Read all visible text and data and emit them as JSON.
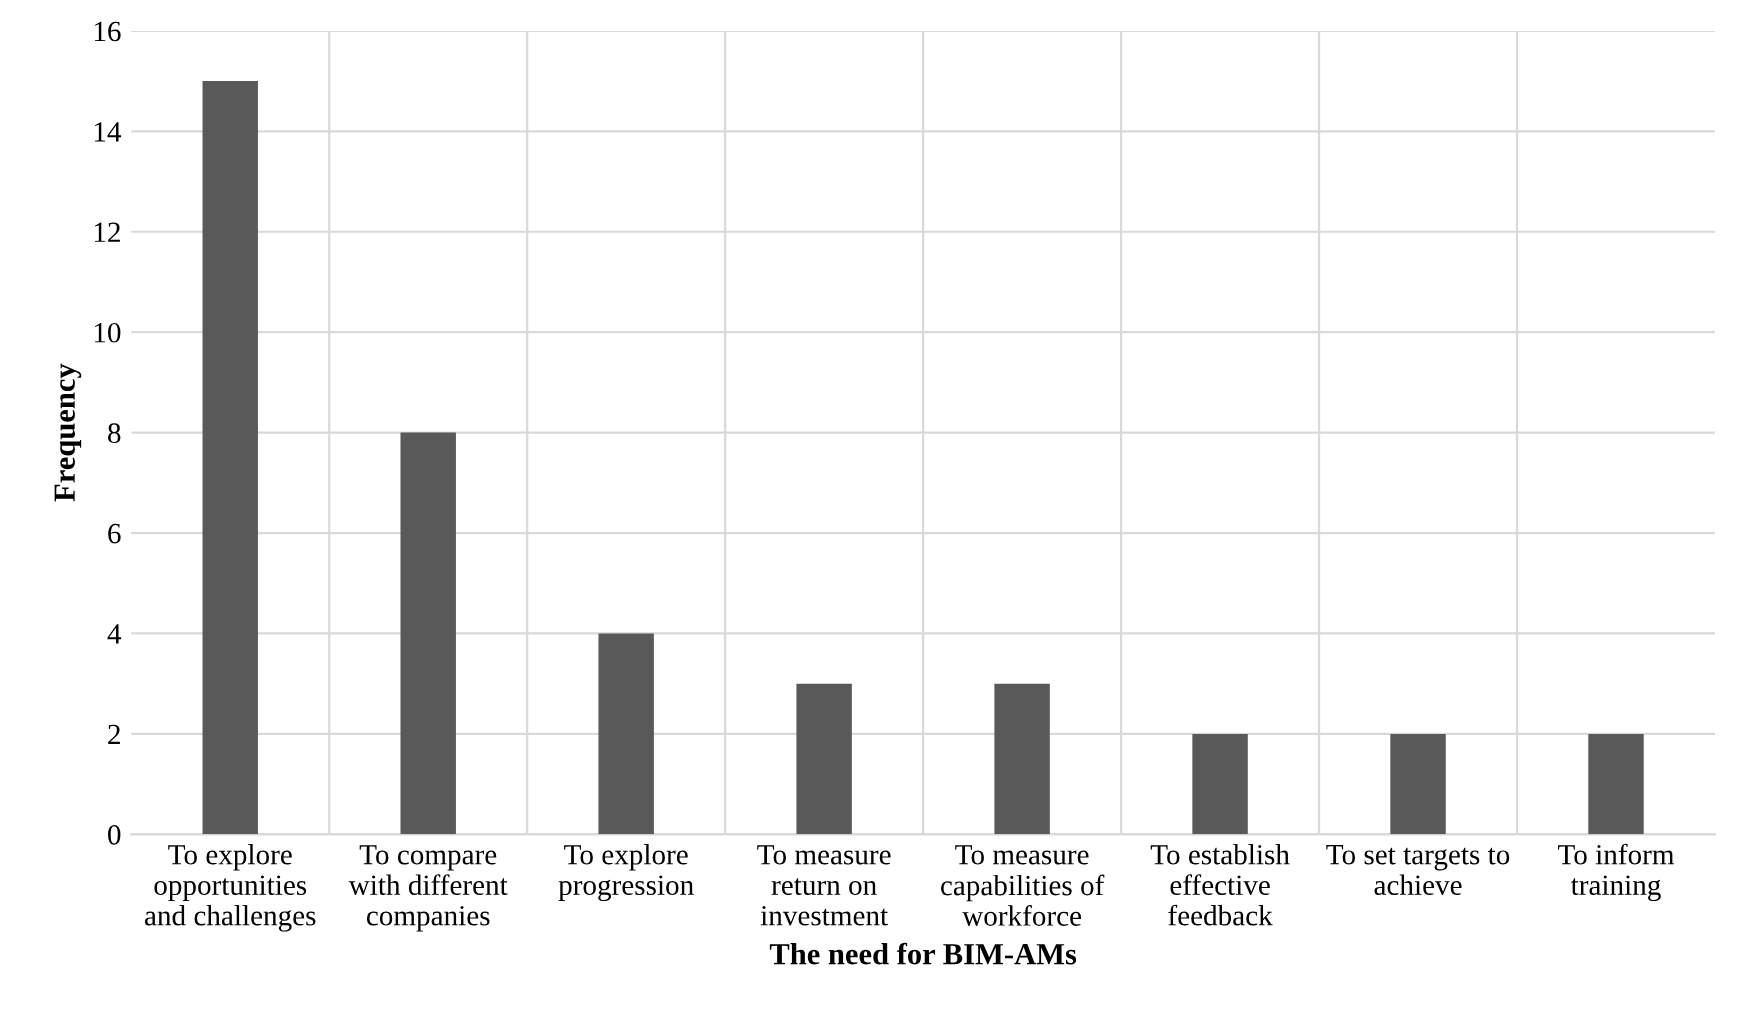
{
  "chart_data": {
    "type": "bar",
    "xlabel": "The need for BIM-AMs",
    "ylabel": "Frequency",
    "categories": [
      "To explore\nopportunities\nand challenges",
      "To compare\nwith different\ncompanies",
      "To explore\nprogression",
      "To measure\nreturn on\ninvestment",
      "To measure\ncapabilities of\nworkforce",
      "To establish\neffective\nfeedback",
      "To set targets to\nachieve",
      "To inform\ntraining"
    ],
    "values": [
      15,
      8,
      4,
      3,
      3,
      2,
      2,
      2
    ],
    "color": "#595959",
    "ylim": [
      0,
      16
    ],
    "yticks": [
      0,
      2,
      4,
      6,
      8,
      10,
      12,
      14,
      16
    ],
    "grid": true
  }
}
